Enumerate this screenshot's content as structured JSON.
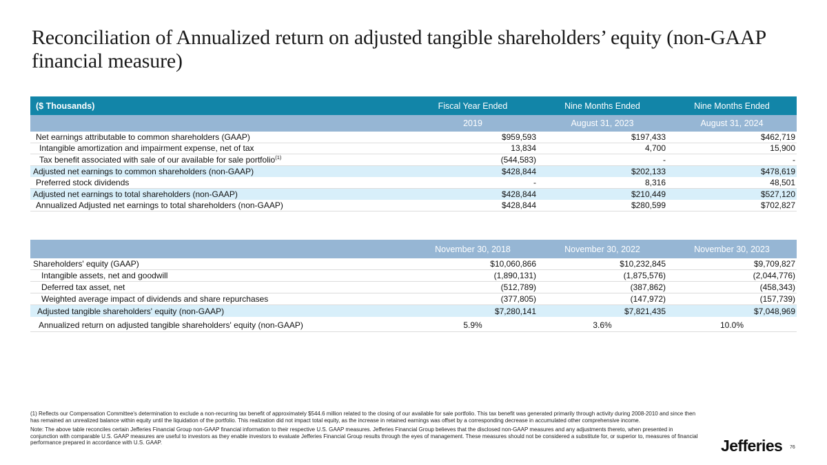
{
  "page": {
    "title": "Reconciliation of Annualized return on adjusted tangible shareholders’ equity (non-GAAP financial measure)",
    "logo_text": "Jefferies",
    "page_number": "76"
  },
  "colors": {
    "header_teal": "#1285A8",
    "header_blue_band": "#96B6D4",
    "row_highlight": "#D8EFFA"
  },
  "table1": {
    "corner_label": "($ Thousands)",
    "period_headers": [
      "Fiscal Year Ended",
      "Nine Months Ended",
      "Nine Months Ended"
    ],
    "date_headers": [
      "2019",
      "August 31, 2023",
      "August 31, 2024"
    ],
    "rows": [
      {
        "label": "Net earnings attributable to common shareholders (GAAP)",
        "values": [
          "$959,593",
          "$197,433",
          "$462,719"
        ],
        "style": "normal",
        "indent": 1
      },
      {
        "label": "Intangible amortization and impairment expense, net of tax",
        "values": [
          "13,834",
          "4,700",
          "15,900"
        ],
        "style": "normal",
        "indent": 2
      },
      {
        "label": "Tax benefit associated with sale of our available for sale portfolio",
        "sup": "(1)",
        "values": [
          "(544,583)",
          "-",
          "-"
        ],
        "style": "normal",
        "indent": 2
      },
      {
        "label": "Adjusted net earnings to common shareholders (non-GAAP)",
        "values": [
          "$428,844",
          "$202,133",
          "$478,619"
        ],
        "style": "highlight",
        "indent": 0
      },
      {
        "label": "Preferred stock dividends",
        "values": [
          "-",
          "8,316",
          "48,501"
        ],
        "style": "normal",
        "indent": 1
      },
      {
        "label": "Adjusted net earnings to total shareholders (non-GAAP)",
        "values": [
          "$428,844",
          "$210,449",
          "$527,120"
        ],
        "style": "highlight",
        "indent": 0
      },
      {
        "label": "Annualized Adjusted net earnings to total shareholders (non-GAAP)",
        "values": [
          "$428,844",
          "$280,599",
          "$702,827"
        ],
        "style": "normal",
        "indent": 1
      }
    ]
  },
  "table2": {
    "date_headers": [
      "November 30, 2018",
      "November 30, 2022",
      "November 30, 2023"
    ],
    "rows": [
      {
        "label": "Shareholders' equity (GAAP)",
        "values": [
          "$10,060,866",
          "$10,232,845",
          "$9,709,827"
        ],
        "style": "normal",
        "indent": 0
      },
      {
        "label": "Intangible assets, net and goodwill",
        "values": [
          "(1,890,131)",
          "(1,875,576)",
          "(2,044,776)"
        ],
        "style": "normal",
        "indent": 3
      },
      {
        "label": "Deferred tax asset, net",
        "values": [
          "(512,789)",
          "(387,862)",
          "(458,343)"
        ],
        "style": "normal",
        "indent": 3
      },
      {
        "label": "Weighted average impact of dividends and share repurchases",
        "values": [
          "(377,805)",
          "(147,972)",
          "(157,739)"
        ],
        "style": "normal",
        "indent": 3
      },
      {
        "label": "Adjusted tangible shareholders' equity (non-GAAP)",
        "values": [
          "$7,280,141",
          "$7,821,435",
          "$7,048,969"
        ],
        "style": "highlight",
        "indent": 4
      },
      {
        "label": "Annualized return on adjusted tangible shareholders' equity (non-GAAP)",
        "values": [
          "5.9%",
          "3.6%",
          "10.0%"
        ],
        "style": "percent",
        "indent": 5
      }
    ]
  },
  "footnotes": {
    "footnote1": "(1) Reflects our Compensation Committee's determination to exclude a non-recurring tax benefit of approximately $544.6 million related to the closing of our available for sale portfolio. This tax benefit was generated primarily through activity during 2008-2010 and since then has remained an unrealized balance within equity until the liquidation of the portfolio. This realization did not impact total equity, as the increase in retained earnings was offset by a corresponding decrease in accumulated other comprehensive income.",
    "note": "Note: The above table reconciles certain Jefferies Financial Group non-GAAP financial information to their respective U.S. GAAP measures. Jefferies Financial Group believes that the disclosed non-GAAP measures and any adjustments thereto, when presented in conjunction with comparable U.S. GAAP measures are useful to investors as they enable investors to evaluate Jefferies Financial Group results through the eyes of management. These measures should not be considered a substitute for, or superior to, measures of financial performance prepared in accordance with U.S. GAAP."
  }
}
